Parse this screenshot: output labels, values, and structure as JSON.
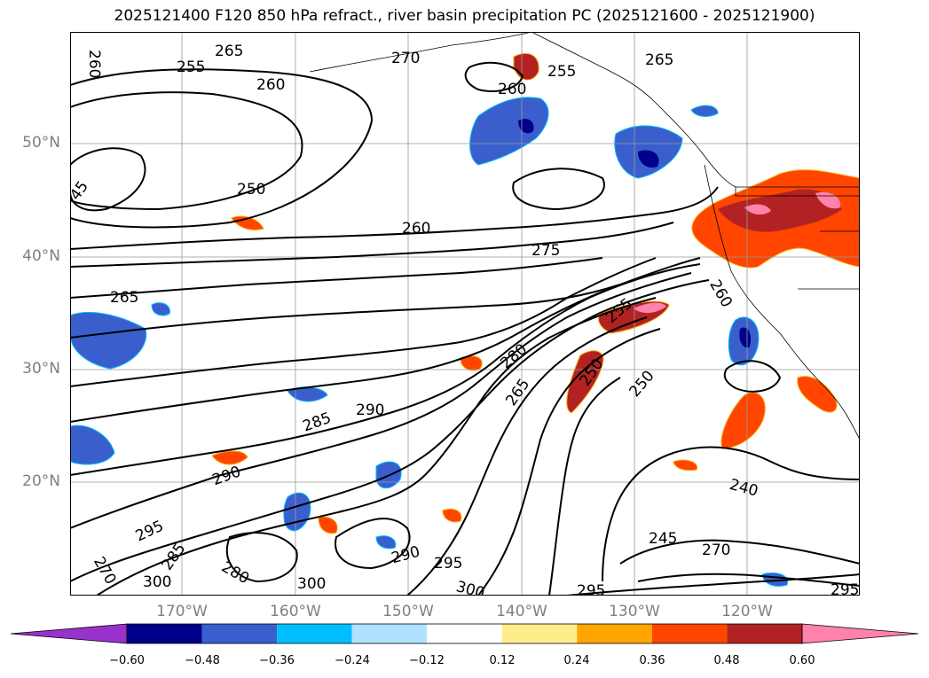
{
  "title": "2025121400 F120 850 hPa refract., river basin precipitation PC (2025121600 - 2025121900)",
  "lat_labels": [
    "50°N",
    "40°N",
    "30°N",
    "20°N"
  ],
  "lon_labels": [
    "170°W",
    "160°W",
    "150°W",
    "140°W",
    "130°W",
    "120°W"
  ],
  "contour_labels": [
    "260",
    "265",
    "255",
    "260",
    "270",
    "255",
    "265",
    "260",
    "45",
    "250",
    "260",
    "275",
    "265",
    "255",
    "280",
    "285",
    "290",
    "265",
    "290",
    "250",
    "250",
    "260",
    "295",
    "285",
    "280",
    "290",
    "295",
    "300",
    "270",
    "300",
    "240",
    "245",
    "270",
    "295",
    "295",
    "300"
  ],
  "colorbar": {
    "ticks": [
      "−0.60",
      "−0.48",
      "−0.36",
      "−0.24",
      "−0.12",
      "0.12",
      "0.24",
      "0.36",
      "0.48",
      "0.60"
    ],
    "colors": [
      "#9932cc",
      "#00008b",
      "#3a5fcd",
      "#00bfff",
      "#b0e2ff",
      "#ffffff",
      "#ffec8b",
      "#ffa500",
      "#ff4500",
      "#b22222",
      "#ff82ab"
    ]
  }
}
